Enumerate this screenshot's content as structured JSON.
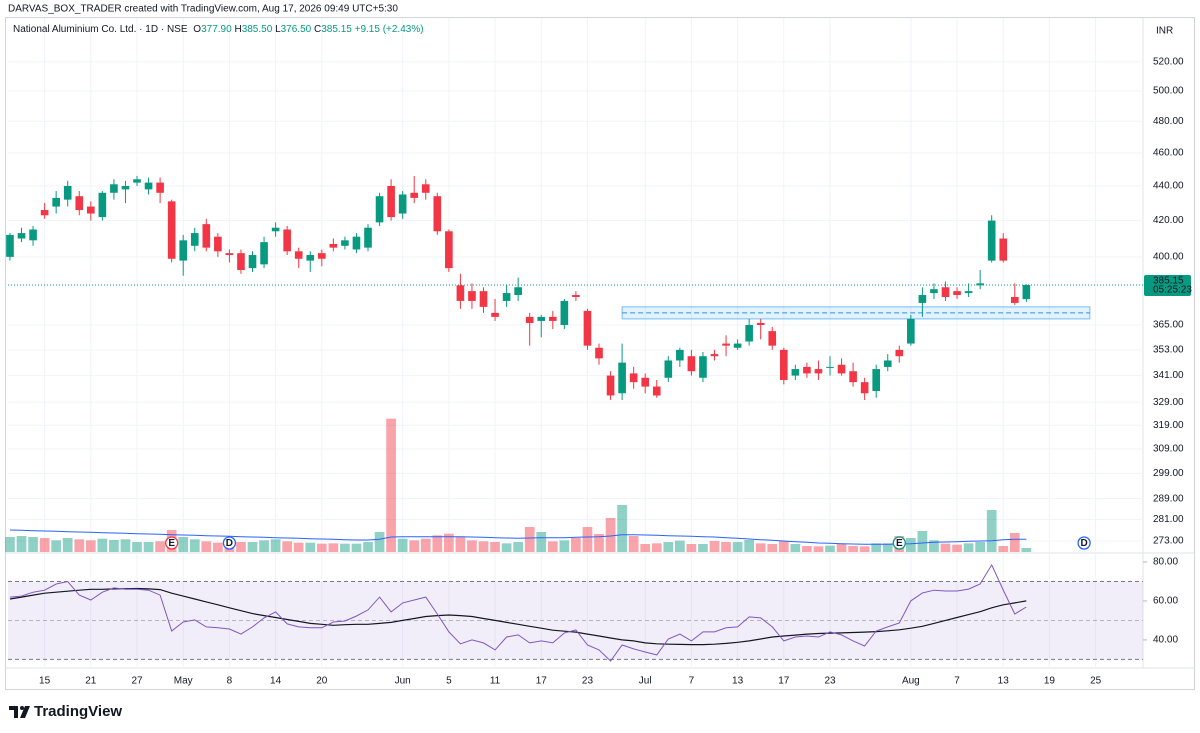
{
  "header": {
    "attribution": "DARVAS_BOX_TRADER created with TradingView.com, Aug 17, 2026 09:49 UTC+5:30",
    "brand": "TradingView"
  },
  "chart_data": {
    "type": "candlestick",
    "title": "National Aluminium Co. Ltd. · 1D · NSE",
    "legend": [
      {
        "key": "O",
        "value": "377.90"
      },
      {
        "key": "H",
        "value": "385.50"
      },
      {
        "key": "L",
        "value": "376.50"
      },
      {
        "key": "C",
        "value": "385.15"
      }
    ],
    "change": "+9.15 (+2.43%)",
    "currency": "INR",
    "log_scale": true,
    "grid": true,
    "up_color": "#089981",
    "down_color": "#f23645",
    "open": [
      400,
      410,
      409,
      426,
      428,
      432,
      434,
      428,
      422,
      436,
      438,
      442,
      438,
      442,
      431,
      398,
      406,
      418,
      411,
      402,
      402,
      394,
      396,
      414,
      415,
      403,
      398,
      402,
      407,
      406,
      404,
      405,
      419,
      440,
      424,
      436,
      441,
      434,
      414,
      385,
      382,
      382,
      371,
      377,
      380,
      369,
      367,
      369,
      365,
      380,
      372,
      354,
      341,
      333,
      342,
      340,
      336,
      340,
      348,
      350,
      340,
      351,
      356,
      354,
      357,
      366,
      362,
      353,
      341,
      345,
      344,
      345,
      346,
      343,
      338,
      334,
      345,
      353,
      356,
      376,
      381,
      384,
      382,
      381,
      385,
      398,
      410,
      379,
      377.9
    ],
    "high": [
      413,
      416,
      417,
      430,
      437,
      443,
      437,
      431,
      437,
      444,
      443,
      446,
      445,
      445,
      432,
      412,
      416,
      421,
      413,
      404,
      404,
      403,
      411,
      419,
      417,
      405,
      403,
      404,
      410,
      411,
      413,
      418,
      436,
      444,
      437,
      446,
      444,
      436,
      415,
      391,
      386,
      384,
      378,
      385,
      389,
      371,
      370,
      372,
      378,
      382,
      373,
      356,
      343,
      356,
      345,
      342,
      339,
      350,
      354,
      353,
      352,
      353,
      360,
      358,
      368,
      368,
      364,
      354,
      346,
      347,
      348,
      350,
      349,
      347,
      340,
      346,
      351,
      355,
      370,
      384,
      386,
      387,
      384,
      386,
      393,
      423,
      413,
      386,
      385.5
    ],
    "low": [
      398,
      408,
      406,
      421,
      424,
      428,
      423,
      420,
      420,
      432,
      430,
      440,
      435,
      430,
      397,
      390,
      403,
      403,
      400,
      397,
      391,
      392,
      394,
      411,
      401,
      394,
      392,
      395,
      403,
      404,
      402,
      403,
      417,
      420,
      421,
      430,
      432,
      412,
      392,
      373,
      373,
      371,
      367,
      374,
      377,
      355,
      359,
      363,
      363,
      377,
      353,
      346,
      330,
      330,
      335,
      333,
      331,
      338,
      345,
      341,
      338,
      348,
      350,
      353,
      355,
      358,
      353,
      337,
      339,
      340,
      339,
      341,
      341,
      336,
      330,
      331,
      343,
      347,
      355,
      369,
      378,
      377,
      378,
      379,
      383,
      397,
      397,
      375,
      376.5
    ],
    "close": [
      412,
      413,
      415,
      423,
      433,
      440,
      426,
      424,
      436,
      441,
      440,
      444,
      442,
      436,
      399,
      409,
      413,
      405,
      403,
      401,
      393,
      401,
      408,
      416,
      403,
      399,
      401,
      399,
      405,
      409,
      411,
      416,
      434,
      422,
      435,
      433,
      436,
      414,
      394,
      377,
      377,
      374,
      369,
      381,
      384,
      366,
      369,
      367,
      377,
      379,
      355,
      349,
      332,
      347,
      338,
      336,
      332,
      348,
      353,
      343,
      350,
      350,
      355,
      356,
      365,
      365,
      355,
      339,
      344,
      342,
      342,
      345,
      342,
      338,
      333,
      344,
      348,
      350,
      368,
      380,
      383,
      379,
      380,
      382,
      386,
      420,
      398,
      376,
      385.15
    ],
    "xlim": [
      -0.17,
      98.1
    ],
    "xticks": [
      {
        "value": 3,
        "label": "15"
      },
      {
        "value": 7,
        "label": "21"
      },
      {
        "value": 11,
        "label": "27"
      },
      {
        "value": 15,
        "label": "May"
      },
      {
        "value": 19,
        "label": "8"
      },
      {
        "value": 23,
        "label": "14"
      },
      {
        "value": 27,
        "label": "20"
      },
      {
        "value": 34,
        "label": "Jun"
      },
      {
        "value": 38,
        "label": "5"
      },
      {
        "value": 42,
        "label": "11"
      },
      {
        "value": 46,
        "label": "17"
      },
      {
        "value": 50,
        "label": "23"
      },
      {
        "value": 55,
        "label": "Jul"
      },
      {
        "value": 59,
        "label": "7"
      },
      {
        "value": 63,
        "label": "13"
      },
      {
        "value": 67,
        "label": "17"
      },
      {
        "value": 71,
        "label": "23"
      },
      {
        "value": 78,
        "label": "Aug"
      },
      {
        "value": 82,
        "label": "7"
      },
      {
        "value": 86,
        "label": "13"
      },
      {
        "value": 90,
        "label": "19"
      },
      {
        "value": 94,
        "label": "25"
      }
    ],
    "ylim": [
      269,
      550
    ],
    "yticks": [
      {
        "value": 520,
        "label": "520.00"
      },
      {
        "value": 500,
        "label": "500.00"
      },
      {
        "value": 480,
        "label": "480.00"
      },
      {
        "value": 460,
        "label": "460.00"
      },
      {
        "value": 440,
        "label": "440.00"
      },
      {
        "value": 420,
        "label": "420.00"
      },
      {
        "value": 400,
        "label": "400.00"
      },
      {
        "value": 365,
        "label": "365.00"
      },
      {
        "value": 353,
        "label": "353.00"
      },
      {
        "value": 341,
        "label": "341.00"
      },
      {
        "value": 329,
        "label": "329.00"
      },
      {
        "value": 319,
        "label": "319.00"
      },
      {
        "value": 309,
        "label": "309.00"
      },
      {
        "value": 299,
        "label": "299.00"
      },
      {
        "value": 289,
        "label": "289.00"
      },
      {
        "value": 281,
        "label": "281.00"
      },
      {
        "value": 273,
        "label": "273.00"
      }
    ],
    "last_price": {
      "value": 385.15,
      "label": "385.15",
      "countdown": "05:25:23",
      "color": "#089981"
    },
    "zone": {
      "x": [
        53,
        93.5
      ],
      "top": 374,
      "bottom": 368,
      "mid": 371,
      "color": "#2196f3"
    },
    "events": [
      {
        "label": "E",
        "x": 14,
        "color": "#f23645"
      },
      {
        "label": "D",
        "x": 19,
        "color": "#2962ff"
      },
      {
        "label": "E",
        "x": 77,
        "color": "#089981"
      },
      {
        "label": "D",
        "x": 93,
        "color": "#2962ff"
      }
    ],
    "volume": {
      "values": [
        4.5,
        4.8,
        4.5,
        4.2,
        3.5,
        4.2,
        3.8,
        3.5,
        4,
        3.6,
        3.8,
        3,
        3,
        3.2,
        6.6,
        4.5,
        3.8,
        3.2,
        2.8,
        2.5,
        3,
        3,
        3.5,
        3.8,
        3.2,
        2.8,
        2.8,
        2.5,
        2.6,
        2.5,
        2.5,
        3,
        6,
        40,
        4,
        3.5,
        4,
        5,
        5.5,
        4.5,
        3.5,
        3.2,
        3,
        2.6,
        3,
        7.5,
        6,
        3.2,
        3.5,
        4.2,
        7.5,
        5.4,
        10.2,
        14.1,
        4.8,
        2.4,
        2.6,
        3,
        3.4,
        2.4,
        2.4,
        3.3,
        3,
        3,
        3.6,
        2.6,
        2.4,
        3.3,
        2.4,
        1.8,
        1.7,
        1.9,
        2.4,
        1.8,
        1.7,
        2.6,
        2.6,
        4.8,
        4.2,
        6.3,
        3.5,
        2.5,
        2.2,
        2.6,
        3,
        12.6,
        1.8,
        5.7,
        1.2
      ],
      "ma": [
        6.6,
        6.5,
        6.4,
        6.3,
        6.2,
        6.1,
        6,
        5.9,
        5.8,
        5.7,
        5.6,
        5.5,
        5.4,
        5.3,
        5.2,
        5.1,
        5,
        4.9,
        4.8,
        4.7,
        4.6,
        4.5,
        4.4,
        4.3,
        4.2,
        4.1,
        4.0,
        3.9,
        3.8,
        3.7,
        3.6,
        3.6,
        3.8,
        4.5,
        4.6,
        4.6,
        4.6,
        4.6,
        4.6,
        4.6,
        4.5,
        4.4,
        4.3,
        4.2,
        4.1,
        4.2,
        4.3,
        4.3,
        4.3,
        4.4,
        4.5,
        4.6,
        4.8,
        5.2,
        5.2,
        5.1,
        5,
        4.9,
        4.8,
        4.7,
        4.6,
        4.5,
        4.3,
        4.1,
        3.9,
        3.7,
        3.5,
        3.3,
        3.1,
        2.9,
        2.7,
        2.6,
        2.5,
        2.4,
        2.3,
        2.3,
        2.3,
        2.4,
        2.5,
        2.7,
        2.9,
        3,
        3.1,
        3.2,
        3.3,
        3.4,
        3.7,
        3.8,
        3.8
      ],
      "ma_color": "#2962ff",
      "ylim": [
        0,
        45
      ]
    },
    "rsi": {
      "values": [
        62,
        62.5,
        64.5,
        65.5,
        68.7,
        70,
        63,
        60.5,
        64.5,
        66.7,
        66,
        66,
        65.5,
        63,
        44.6,
        49.2,
        50.3,
        46.7,
        46.2,
        45.6,
        43,
        46.7,
        51.3,
        54.4,
        48.2,
        46.7,
        46.2,
        46.2,
        49.2,
        49.7,
        52.3,
        55.4,
        62,
        54.4,
        59,
        60.5,
        62,
        53.3,
        44.1,
        38,
        40,
        38.5,
        34.9,
        41.5,
        42.6,
        38.5,
        39.5,
        38.5,
        43.6,
        45.1,
        37.4,
        34.9,
        29.2,
        37.4,
        35.4,
        33.8,
        32.3,
        40.5,
        43,
        39.5,
        44.1,
        44.1,
        46.2,
        46.7,
        51.8,
        51.3,
        46.7,
        39.5,
        41.5,
        42,
        41.5,
        44.1,
        42.6,
        39.5,
        36.9,
        44.6,
        46.7,
        48.7,
        60,
        64.1,
        65.5,
        65.1,
        65.1,
        66.1,
        68.7,
        78.5,
        65.6,
        53.3,
        56.9
      ],
      "ma": [
        61,
        62,
        63,
        64,
        64.5,
        65,
        65.5,
        66,
        66,
        66.2,
        66.3,
        66.4,
        66.2,
        65.8,
        64,
        62.5,
        61,
        59.5,
        58,
        56.5,
        55,
        53.5,
        52.5,
        51.5,
        50.5,
        49.5,
        48.5,
        48,
        47.5,
        47.8,
        48,
        48,
        48.5,
        49,
        50,
        51,
        52,
        52.5,
        52.8,
        52.5,
        52,
        51,
        50,
        49,
        48,
        47,
        46,
        45,
        44.5,
        44,
        43,
        42,
        41,
        40,
        39.5,
        38.5,
        38,
        37.8,
        37.7,
        37.6,
        37.6,
        37.8,
        38.2,
        38.8,
        39.5,
        40.5,
        41.5,
        42,
        42.5,
        43,
        43.3,
        43.5,
        43.6,
        43.8,
        44,
        44.3,
        44.7,
        45.2,
        46,
        47,
        48.5,
        50,
        51.5,
        53,
        54.5,
        56.5,
        58,
        59,
        60
      ],
      "color": "#7e57c2",
      "ma_color": "#131722",
      "ylim": [
        25.6,
        84.6
      ],
      "yticks": [
        {
          "value": 80,
          "label": "80.00"
        },
        {
          "value": 60,
          "label": "60.00"
        },
        {
          "value": 40,
          "label": "40.00"
        }
      ],
      "bands": [
        70,
        30
      ],
      "mid": 50
    }
  }
}
